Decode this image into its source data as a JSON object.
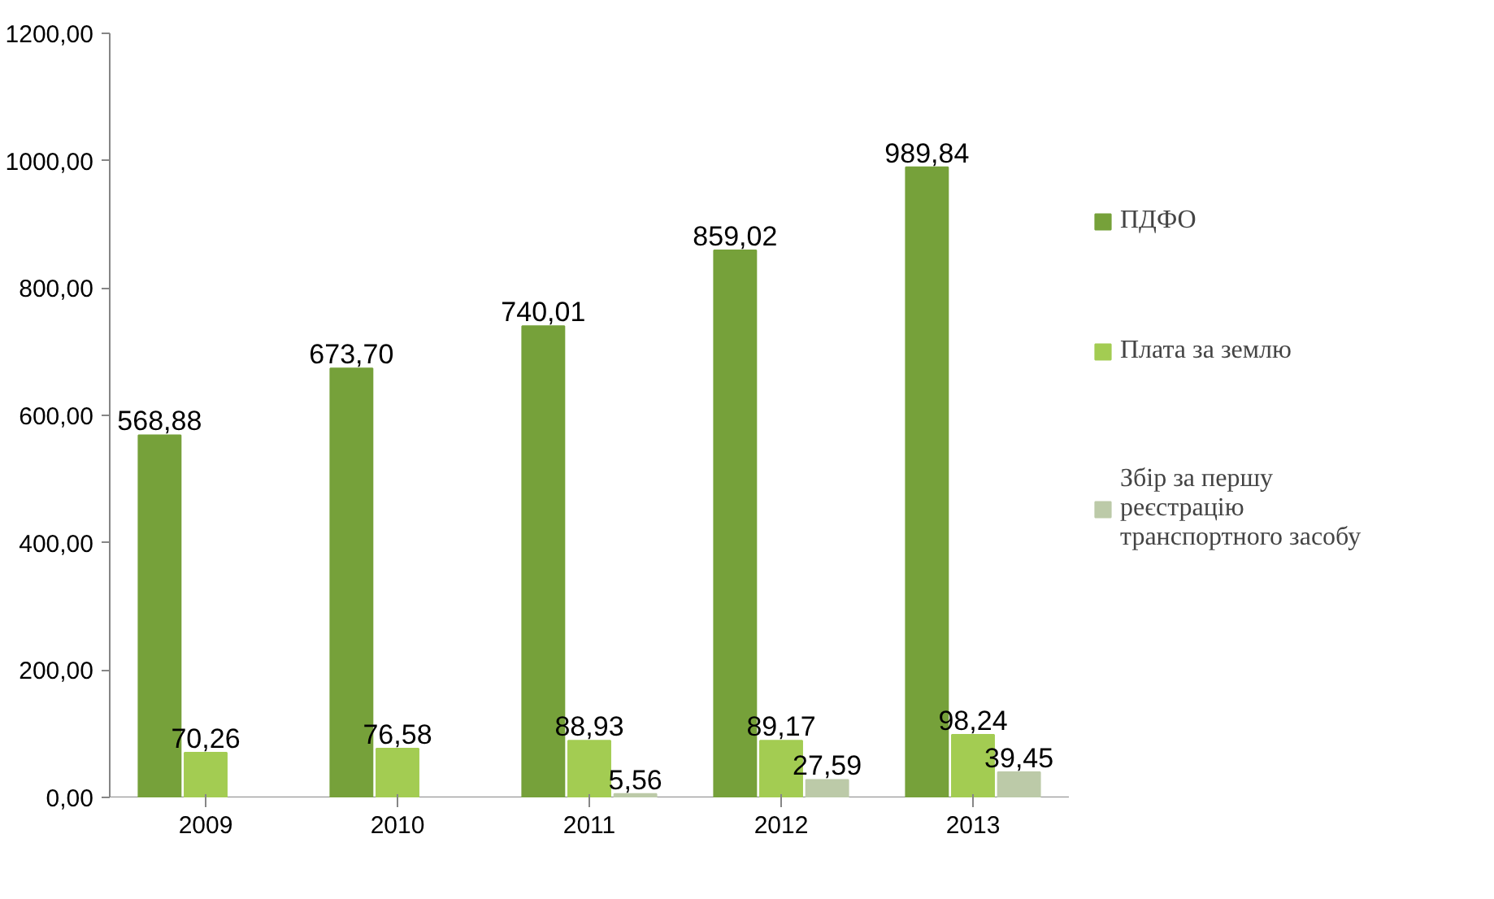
{
  "chart_data": {
    "type": "bar",
    "categories": [
      "2009",
      "2010",
      "2011",
      "2012",
      "2013"
    ],
    "ylim": [
      0,
      1200
    ],
    "yticks": [
      {
        "value": 0,
        "label": "0,00"
      },
      {
        "value": 200,
        "label": "200,00"
      },
      {
        "value": 400,
        "label": "400,00"
      },
      {
        "value": 600,
        "label": "600,00"
      },
      {
        "value": 800,
        "label": "800,00"
      },
      {
        "value": 1000,
        "label": "1000,00"
      },
      {
        "value": 1200,
        "label": "1200,00"
      }
    ],
    "series": [
      {
        "name": "ПДФО",
        "color": "#76a13a",
        "values": [
          568.88,
          673.7,
          740.01,
          859.02,
          989.84
        ],
        "value_labels": [
          "568,88",
          "673,70",
          "740,01",
          "859,02",
          "989,84"
        ]
      },
      {
        "name": "Плата за землю",
        "color": "#a3cc52",
        "values": [
          70.26,
          76.58,
          88.93,
          89.17,
          98.24
        ],
        "value_labels": [
          "70,26",
          "76,58",
          "88,93",
          "89,17",
          "98,24"
        ]
      },
      {
        "name": "Збір за першу реєстрацію транспортного засобу",
        "color": "#bccaa8",
        "values": [
          null,
          null,
          5.56,
          27.59,
          39.45
        ],
        "value_labels": [
          null,
          null,
          "5,56",
          "27,59",
          "39,45"
        ]
      }
    ],
    "grid": false,
    "legend": "right"
  }
}
